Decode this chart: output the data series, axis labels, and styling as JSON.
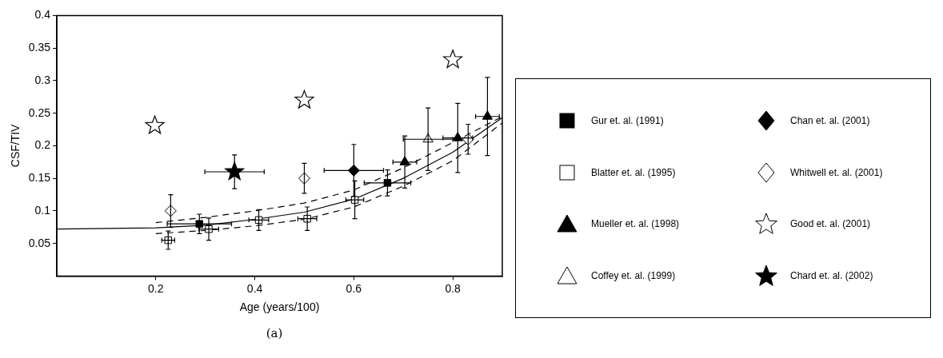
{
  "chart_data": {
    "type": "scatter",
    "xlabel": "Age (years/100)",
    "ylabel": "CSF/TIV",
    "xlim": [
      0,
      0.9
    ],
    "ylim": [
      0,
      0.4
    ],
    "xticks": [
      0.2,
      0.4,
      0.6,
      0.8
    ],
    "yticks": [
      0.05,
      0.1,
      0.15,
      0.2,
      0.25,
      0.3,
      0.35,
      0.4
    ],
    "grid": false,
    "legend": "right",
    "annotations": [
      "(a)"
    ],
    "series": [
      {
        "name": "Gur et. al. (1991)",
        "color": "#000000",
        "marker": "square",
        "x": [
          0.288,
          0.668
        ],
        "values": [
          0.08,
          0.143
        ],
        "errors": [
          0.015,
          0.02
        ],
        "xerrors": [
          0.065,
          0.047
        ]
      },
      {
        "name": "Blatter et. al. (1995)",
        "color": "#ffffff",
        "marker": "square",
        "x": [
          0.225,
          0.307,
          0.408,
          0.506,
          0.602
        ],
        "values": [
          0.055,
          0.072,
          0.086,
          0.088,
          0.117
        ],
        "errors": [
          0.014,
          0.017,
          0.016,
          0.018,
          0.029
        ],
        "xerrors": [
          0.013,
          0.02,
          0.02,
          0.019,
          0.018
        ]
      },
      {
        "name": "Mueller et. al. (1998)",
        "color": "#000000",
        "marker": "triangle",
        "x": [
          0.703,
          0.81,
          0.87
        ],
        "values": [
          0.175,
          0.212,
          0.245
        ],
        "errors": [
          0.04,
          0.053,
          0.06
        ],
        "xerrors": [
          0.024,
          0.03,
          0.024
        ]
      },
      {
        "name": "Coffey et. al. (1999)",
        "color": "#ffffff",
        "marker": "triangle",
        "x": [
          0.75
        ],
        "values": [
          0.21
        ],
        "errors": [
          0.048
        ],
        "xerrors": [
          0.05
        ]
      },
      {
        "name": "Chan et. al. (2001)",
        "color": "#000000",
        "marker": "diamond",
        "x": [
          0.6
        ],
        "values": [
          0.162
        ],
        "errors": [
          0.04
        ],
        "xerrors": [
          0.06
        ]
      },
      {
        "name": "Whitwell et. al. (2001)",
        "color": "#ffffff",
        "marker": "diamond",
        "x": [
          0.23,
          0.5,
          0.831
        ],
        "values": [
          0.1,
          0.15,
          0.21
        ],
        "errors": [
          0.025,
          0.023,
          0.023
        ]
      },
      {
        "name": "Good et. al. (2001)",
        "color": "#ffffff",
        "marker": "star",
        "x": [
          0.198,
          0.5,
          0.8
        ],
        "values": [
          0.231,
          0.27,
          0.332
        ]
      },
      {
        "name": "Chard et. al. (2002)",
        "color": "#000000",
        "marker": "star",
        "x": [
          0.359
        ],
        "values": [
          0.16
        ],
        "errors": [
          0.026
        ],
        "xerrors": [
          0.06
        ]
      },
      {
        "type": "line",
        "color": "#000000",
        "line_style": "solid",
        "marker": "none",
        "x": [
          0,
          0.1,
          0.2,
          0.3,
          0.4,
          0.5,
          0.6,
          0.7,
          0.8,
          0.9
        ],
        "values": [
          0.072,
          0.073,
          0.074,
          0.078,
          0.087,
          0.098,
          0.118,
          0.15,
          0.19,
          0.243
        ]
      },
      {
        "type": "line",
        "color": "#000000",
        "line_style": "dashed",
        "marker": "none",
        "x": [
          0.2,
          0.3,
          0.4,
          0.5,
          0.6,
          0.7,
          0.8,
          0.9
        ],
        "values": [
          0.082,
          0.09,
          0.1,
          0.112,
          0.132,
          0.166,
          0.205,
          0.245
        ]
      },
      {
        "type": "line",
        "color": "#000000",
        "line_style": "dashed",
        "marker": "none",
        "x": [
          0.2,
          0.3,
          0.4,
          0.5,
          0.6,
          0.7,
          0.8,
          0.9
        ],
        "values": [
          0.065,
          0.07,
          0.077,
          0.087,
          0.106,
          0.138,
          0.177,
          0.235
        ]
      }
    ]
  }
}
